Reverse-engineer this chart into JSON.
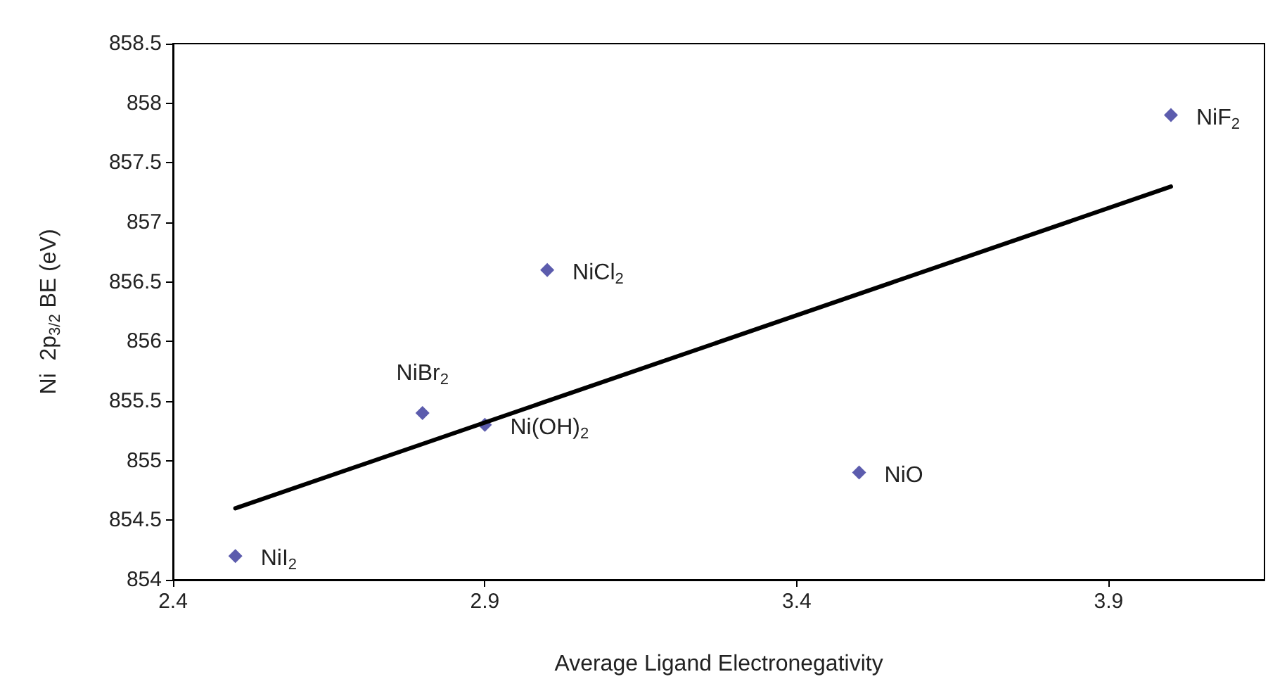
{
  "chart_data": {
    "type": "scatter",
    "xlabel": "Average Ligand Electronegativity",
    "ylabel": "Ni  2p$_{3/2}$ BE (eV)",
    "x": [
      2.5,
      2.8,
      2.9,
      3.0,
      3.5,
      4.0
    ],
    "series": [
      {
        "color": "#333399",
        "marker": "diamond",
        "values": [
          854.2,
          855.4,
          855.3,
          856.6,
          854.9,
          857.9
        ]
      },
      {
        "type": "line",
        "color": "#000000",
        "marker": "none",
        "line_style": "solid",
        "x": [
          2.5,
          4.0
        ],
        "values": [
          854.6,
          857.3
        ]
      }
    ],
    "annotations": [
      {
        "text": "NiI$_{2}$",
        "x": 2.5,
        "y": 854.2
      },
      {
        "text": "NiBr$_{2}$",
        "x": 2.8,
        "y": 855.4
      },
      {
        "text": "Ni(OH)$_{2}$",
        "x": 2.9,
        "y": 855.3
      },
      {
        "text": "NiCl$_{2}$",
        "x": 3.0,
        "y": 856.6
      },
      {
        "text": "NiO",
        "x": 3.5,
        "y": 854.9
      },
      {
        "text": "NiF$_{2}$",
        "x": 4.0,
        "y": 857.9
      }
    ],
    "xlim": [
      2.4,
      4.15
    ],
    "xticks": [
      2.4,
      2.9,
      3.4,
      3.9
    ],
    "ylim": [
      854,
      858.5
    ],
    "yticks": [
      854,
      854.5,
      855,
      855.5,
      856,
      856.5,
      857,
      857.5,
      858,
      858.5
    ],
    "grid": false
  }
}
